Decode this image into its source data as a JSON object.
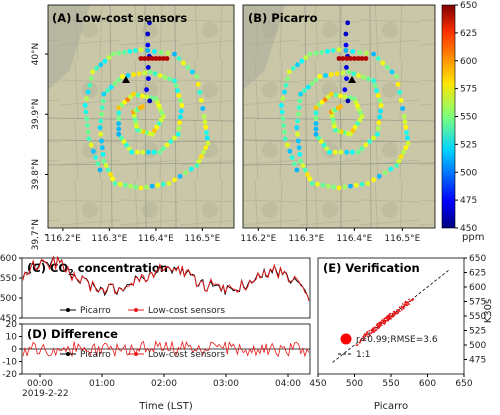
{
  "chart_data": [
    {
      "type": "heatmap",
      "panel": "map-a",
      "title": "(A) Low-cost sensors",
      "x_ticks": [
        "116.2°E",
        "116.3°E",
        "116.4°E",
        "116.5°E"
      ],
      "y_ticks": [
        "40°N",
        "39.9°N",
        "39.8°N",
        "39.7°N"
      ]
    },
    {
      "type": "heatmap",
      "panel": "map-b",
      "title": "(B) Picarro",
      "x_ticks": [
        "116.2°E",
        "116.3°E",
        "116.4°E",
        "116.5°E"
      ]
    },
    {
      "type": "colorbar",
      "panel": "colorbar",
      "range": [
        450,
        650
      ],
      "ticks": [
        450,
        475,
        500,
        525,
        550,
        575,
        600,
        625,
        650
      ],
      "unit": "ppm"
    },
    {
      "type": "line",
      "panel": "co2",
      "title_main": "(C) CO",
      "title_sub": "2",
      "title_rest": " concentration",
      "ylim": [
        450,
        600
      ],
      "yticks": [
        450,
        500,
        550,
        600
      ],
      "series": [
        {
          "name": "Picarro",
          "color": "#000000"
        },
        {
          "name": "Low-cost sensors",
          "color": "#e8191b"
        }
      ]
    },
    {
      "type": "line",
      "panel": "difference",
      "title": "(D) Difference",
      "ylim": [
        -20,
        20
      ],
      "yticks": [
        -20,
        -10,
        0,
        10,
        20
      ],
      "xticks": [
        "00:00",
        "01:00",
        "02:00",
        "03:00",
        "04:00"
      ],
      "xtick_sub": "2019-2-22",
      "xlabel": "Time (LST)",
      "series": [
        {
          "name": "Picarro",
          "color": "#000000"
        },
        {
          "name": "Low-cost sensors",
          "color": "#e8191b"
        }
      ]
    },
    {
      "type": "scatter",
      "panel": "verification",
      "title": "(E) Verification",
      "xlabel": "Picarro",
      "ylabel": "K30s",
      "xlim": [
        450,
        650
      ],
      "ylim": [
        450,
        650
      ],
      "xticks": [
        450,
        500,
        550,
        600,
        650
      ],
      "yticks": [
        475,
        500,
        525,
        550,
        575,
        600,
        625,
        650
      ],
      "stats": "r=0.99;RMSE=3.6",
      "fit_label": "1:1"
    }
  ]
}
